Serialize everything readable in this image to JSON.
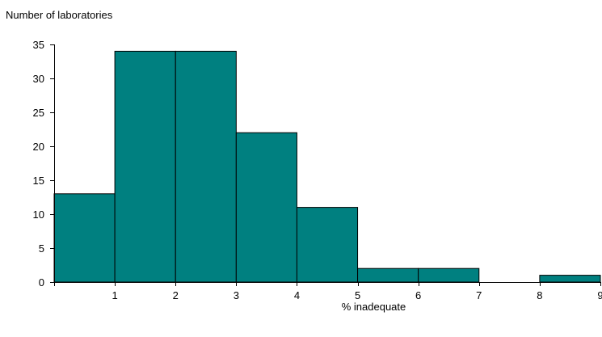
{
  "chart_data": {
    "type": "bar",
    "title": "",
    "ylabel": "Number of laboratories",
    "xlabel": "% inadequate",
    "bins": [
      {
        "from": 0,
        "to": 1,
        "value": 13
      },
      {
        "from": 1,
        "to": 2,
        "value": 34
      },
      {
        "from": 2,
        "to": 3,
        "value": 34
      },
      {
        "from": 3,
        "to": 4,
        "value": 22
      },
      {
        "from": 4,
        "to": 5,
        "value": 11
      },
      {
        "from": 5,
        "to": 6,
        "value": 2
      },
      {
        "from": 6,
        "to": 7,
        "value": 2
      },
      {
        "from": 7,
        "to": 8,
        "value": 0
      },
      {
        "from": 8,
        "to": 9,
        "value": 1
      }
    ],
    "xlim": [
      0,
      9
    ],
    "ylim": [
      0,
      35
    ],
    "x_ticks": [
      1,
      2,
      3,
      4,
      5,
      6,
      7,
      8,
      9
    ],
    "y_ticks": [
      0,
      5,
      10,
      15,
      20,
      25,
      30,
      35
    ],
    "bar_color": "#008080",
    "grid": false,
    "legend": "none"
  }
}
